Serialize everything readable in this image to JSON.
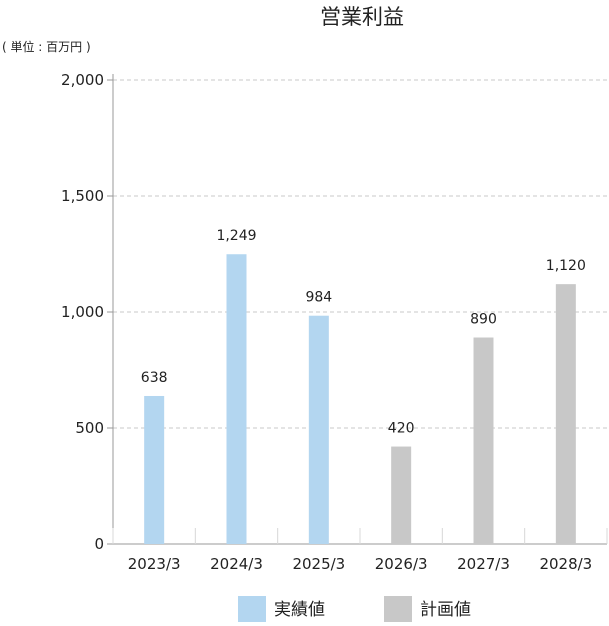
{
  "chart_data": {
    "type": "bar",
    "title": "営業利益",
    "unit": "( 単位 : 百万円 )",
    "xlabel": "",
    "ylabel": "",
    "categories": [
      "2023/3",
      "2024/3",
      "2025/3",
      "2026/3",
      "2027/3",
      "2028/3"
    ],
    "series": [
      {
        "name": "実績値",
        "values": [
          638,
          1249,
          984,
          null,
          null,
          null
        ],
        "color": "#b3d6f0"
      },
      {
        "name": "計画値",
        "values": [
          null,
          null,
          null,
          420,
          890,
          1120
        ],
        "color": "#c8c8c8"
      }
    ],
    "data_labels": [
      "638",
      "1,249",
      "984",
      "420",
      "890",
      "1,120"
    ],
    "ylim": [
      0,
      2000
    ],
    "yticks": [
      0,
      500,
      1000,
      1500,
      2000
    ],
    "ytick_labels": [
      "0",
      "500",
      "1,000",
      "1,500",
      "2,000"
    ],
    "grid": true,
    "legend_position": "bottom"
  }
}
